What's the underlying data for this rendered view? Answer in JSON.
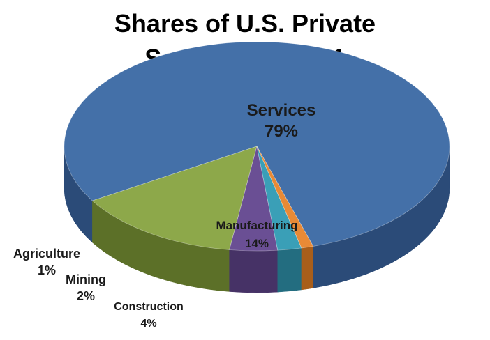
{
  "chart_data": {
    "type": "pie",
    "title_lines": [
      "Shares of U.S. Private",
      "Sector GDP 2011"
    ],
    "slices": [
      {
        "name": "Services",
        "value": 79,
        "label": "79%",
        "color": "#4470a8",
        "side": "#2b4b78"
      },
      {
        "name": "Manufacturing",
        "value": 14,
        "label": "14%",
        "color": "#8da84a",
        "side": "#5c7028"
      },
      {
        "name": "Construction",
        "value": 4,
        "label": "4%",
        "color": "#6a4f94",
        "side": "#463266"
      },
      {
        "name": "Mining",
        "value": 2,
        "label": "2%",
        "color": "#3a9fb7",
        "side": "#236d80"
      },
      {
        "name": "Agriculture",
        "value": 1,
        "label": "1%",
        "color": "#e88a36",
        "side": "#a85e1a"
      }
    ],
    "legend": "none",
    "three_d": true
  }
}
